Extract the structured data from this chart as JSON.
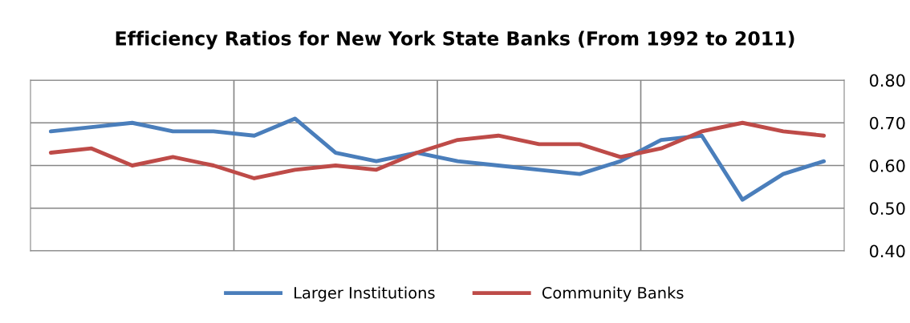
{
  "chart_data": {
    "type": "line",
    "title": "Efficiency Ratios for New York State Banks (From 1992 to 2011)",
    "categories": [
      null,
      null,
      null,
      null,
      null,
      null,
      null,
      null,
      null,
      null,
      null,
      null,
      null,
      null,
      null,
      null,
      null,
      null,
      null,
      null
    ],
    "series": [
      {
        "name": "Larger Institutions",
        "color": "#4a7ebb",
        "values": [
          0.68,
          0.69,
          0.7,
          0.68,
          0.68,
          0.67,
          0.71,
          0.63,
          0.61,
          0.63,
          0.61,
          0.6,
          0.59,
          0.58,
          0.61,
          0.66,
          0.67,
          0.52,
          0.58,
          0.61
        ]
      },
      {
        "name": "Community Banks",
        "color": "#be4b48",
        "values": [
          0.63,
          0.64,
          0.6,
          0.62,
          0.6,
          0.57,
          0.59,
          0.6,
          0.59,
          0.63,
          0.66,
          0.67,
          0.65,
          0.65,
          0.62,
          0.64,
          0.68,
          0.7,
          0.68,
          0.67
        ]
      }
    ],
    "ylim": [
      0.4,
      0.8
    ],
    "yticks": [
      {
        "value": 0.4,
        "label": "0.40"
      },
      {
        "value": 0.5,
        "label": "0.50"
      },
      {
        "value": 0.6,
        "label": "0.60"
      },
      {
        "value": 0.7,
        "label": "0.70"
      },
      {
        "value": 0.8,
        "label": "0.80"
      }
    ],
    "grid": true,
    "legend": "bottom",
    "marker": "none",
    "line_style": "solid"
  }
}
